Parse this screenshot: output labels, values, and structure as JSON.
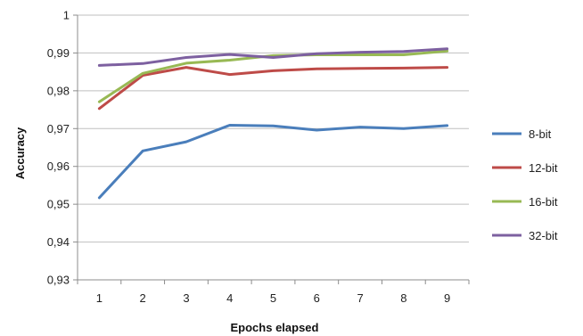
{
  "chart_data": {
    "type": "line",
    "title": "",
    "xlabel": "Epochs elapsed",
    "ylabel": "Accuracy",
    "x": [
      1,
      2,
      3,
      4,
      5,
      6,
      7,
      8,
      9
    ],
    "ylim": [
      0.93,
      1.0
    ],
    "yticks": [
      "0,93",
      "0,94",
      "0,95",
      "0,96",
      "0,97",
      "0,98",
      "0,99",
      "1"
    ],
    "grid": "horizontal",
    "legend_position": "right",
    "series": [
      {
        "name": "8-bit",
        "color": "#4a7ebb",
        "values": [
          0.9517,
          0.9641,
          0.9665,
          0.9709,
          0.9707,
          0.9696,
          0.9704,
          0.97,
          0.9708
        ]
      },
      {
        "name": "12-bit",
        "color": "#be4b48",
        "values": [
          0.9753,
          0.9841,
          0.9862,
          0.9843,
          0.9853,
          0.9858,
          0.9859,
          0.986,
          0.9862
        ]
      },
      {
        "name": "16-bit",
        "color": "#98b954",
        "values": [
          0.9771,
          0.9846,
          0.9873,
          0.9881,
          0.9893,
          0.9895,
          0.9895,
          0.9895,
          0.9905
        ]
      },
      {
        "name": "32-bit",
        "color": "#7d60a0",
        "values": [
          0.9867,
          0.9872,
          0.9888,
          0.9896,
          0.9888,
          0.9898,
          0.9902,
          0.9904,
          0.9911
        ]
      }
    ]
  }
}
